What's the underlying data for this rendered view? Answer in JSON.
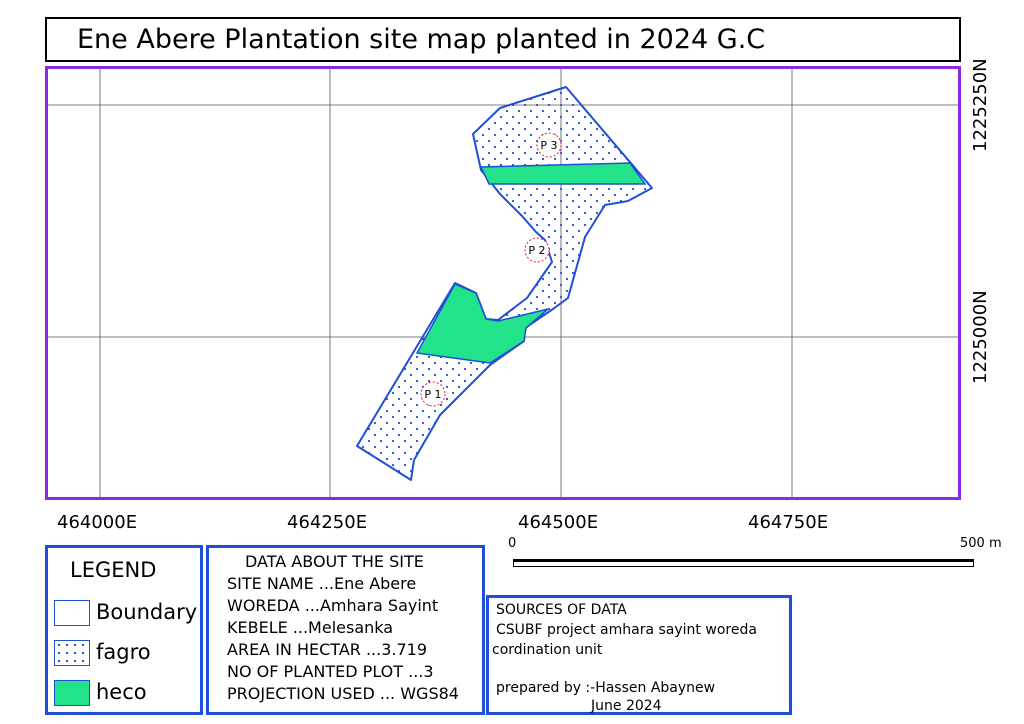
{
  "title": "Ene Abere Plantation site map planted in 2024 G.C",
  "axes": {
    "x_labels": [
      "464000E",
      "464250E",
      "464500E",
      "464750E"
    ],
    "y_labels": [
      "1225250N",
      "1225000N"
    ]
  },
  "plots": [
    "P 1",
    "P 2",
    "P 3"
  ],
  "scale_bar": {
    "start": "0",
    "end": "500 m"
  },
  "legend": {
    "title": "LEGEND",
    "items": [
      {
        "label": "Boundary",
        "pattern": "outline",
        "color": "#1f4fd6"
      },
      {
        "label": "fagro",
        "pattern": "dots",
        "color": "#1f4fd6"
      },
      {
        "label": "heco",
        "pattern": "fill",
        "color": "#22e38a"
      }
    ]
  },
  "site_info": {
    "heading": "DATA ABOUT THE SITE",
    "lines": [
      "SITE NAME ...Ene Abere",
      "WOREDA ...Amhara Sayint",
      "KEBELE ...Melesanka",
      "AREA IN HECTAR ...3.719",
      "NO OF PLANTED PLOT ...3",
      "PROJECTION USED ... WGS84"
    ]
  },
  "sources": {
    "heading": "SOURCES OF DATA",
    "line1": " CSUBF  project  amhara  sayint  woreda",
    "line2": "cordination unit",
    "prepared": "prepared by :-Hassen Abaynew",
    "date": "June 2024"
  },
  "colors": {
    "frame": "#8a2be2",
    "boundary": "#1f4fd6",
    "heco": "#22e38a",
    "dots": "#1f4fd6"
  }
}
